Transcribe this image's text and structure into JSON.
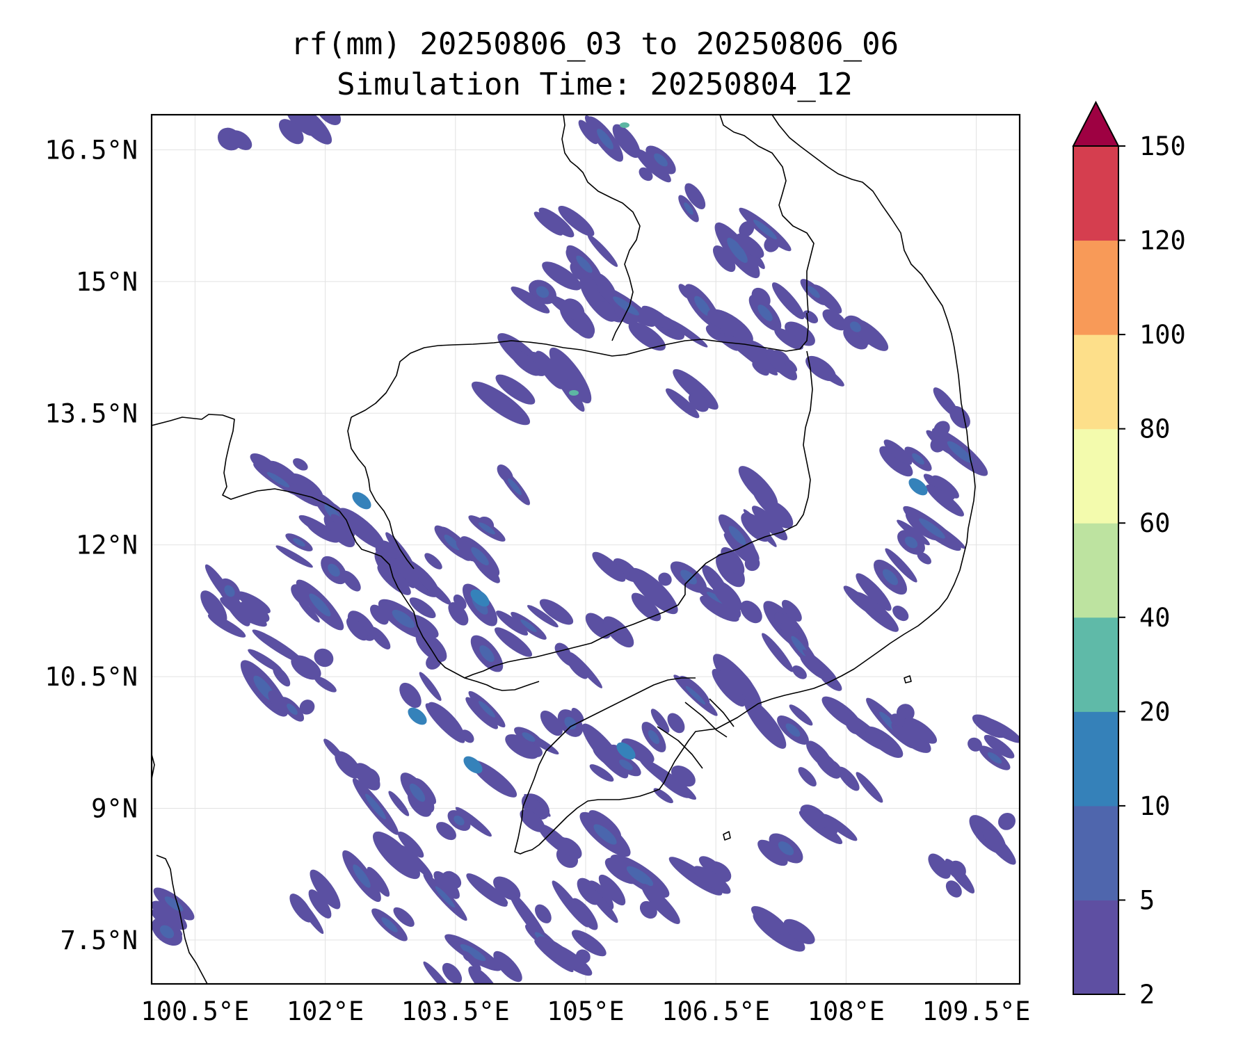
{
  "title": "rf(mm) 20250806_03 to 20250806_06",
  "subtitle": "Simulation Time: 20250804_12",
  "map": {
    "lon_range": [
      100.0,
      110.0
    ],
    "lat_range": [
      7.0,
      16.9
    ],
    "lon_ticks": [
      {
        "value": 100.5,
        "label": "100.5°E"
      },
      {
        "value": 102.0,
        "label": "102°E"
      },
      {
        "value": 103.5,
        "label": "103.5°E"
      },
      {
        "value": 105.0,
        "label": "105°E"
      },
      {
        "value": 106.5,
        "label": "106.5°E"
      },
      {
        "value": 108.0,
        "label": "108°E"
      },
      {
        "value": 109.5,
        "label": "109.5°E"
      }
    ],
    "lat_ticks": [
      {
        "value": 16.5,
        "label": "16.5°N"
      },
      {
        "value": 15.0,
        "label": "15°N"
      },
      {
        "value": 13.5,
        "label": "13.5°N"
      },
      {
        "value": 12.0,
        "label": "12°N"
      },
      {
        "value": 10.5,
        "label": "10.5°N"
      },
      {
        "value": 9.0,
        "label": "9°N"
      },
      {
        "value": 7.5,
        "label": "7.5°N"
      }
    ],
    "grid": true,
    "coastline_color": "#000000"
  },
  "colorbar": {
    "extend": "max",
    "extend_color": "#9e0142",
    "levels": [
      {
        "label": "2"
      },
      {
        "label": "5"
      },
      {
        "label": "10"
      },
      {
        "label": "20"
      },
      {
        "label": "40"
      },
      {
        "label": "60"
      },
      {
        "label": "80"
      },
      {
        "label": "100"
      },
      {
        "label": "120"
      },
      {
        "label": "150"
      }
    ],
    "colors": [
      "#5e4fa2",
      "#4f66ad",
      "#3581b9",
      "#5fbaa8",
      "#bde3a0",
      "#f3fbad",
      "#fddf8a",
      "#f89a58",
      "#d53e4f"
    ]
  },
  "rain_colors": {
    "light": "#5b50a2",
    "medium": "#4a66ad",
    "heavy": "#3582ba",
    "peak": "#5db6a3"
  }
}
